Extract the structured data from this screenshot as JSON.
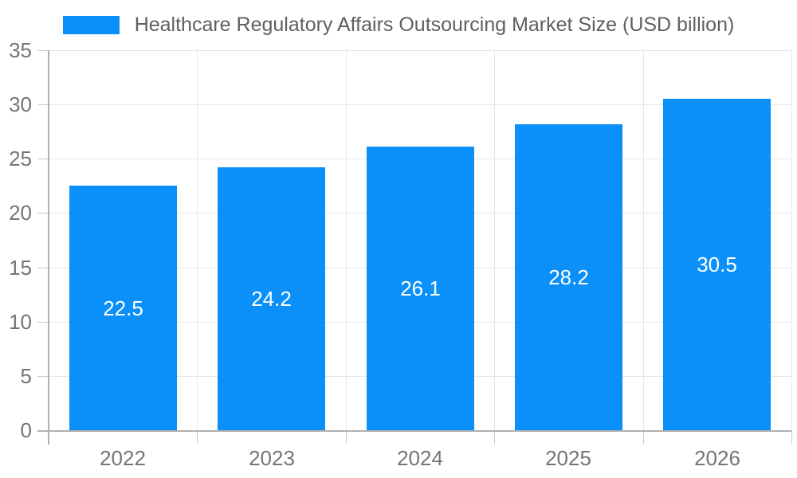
{
  "chart": {
    "legend_label": "Healthcare Regulatory Affairs Outsourcing Market Size (USD billion)"
  },
  "chart_data": {
    "type": "bar",
    "title": "Healthcare Regulatory Affairs Outsourcing Market Size (USD billion)",
    "categories": [
      "2022",
      "2023",
      "2024",
      "2025",
      "2026"
    ],
    "values": [
      22.5,
      24.2,
      26.1,
      28.2,
      30.5
    ],
    "value_labels": [
      "22.5",
      "24.2",
      "26.1",
      "28.2",
      "30.5"
    ],
    "ytick_labels": [
      "0",
      "5",
      "10",
      "15",
      "20",
      "25",
      "30",
      "35"
    ],
    "xlabel": "",
    "ylabel": "",
    "ylim": [
      0,
      35
    ],
    "ytick_step": 5,
    "grid": true,
    "legend_position": "top",
    "colors": {
      "bar": "#0a90f8",
      "grid": "#e6e6e6",
      "axis": "#b0b0b0",
      "tick": "#c9c9c9",
      "axis_label": "#757575",
      "title": "#5f5f5f",
      "value_label": "#ffffff",
      "background": "#ffffff"
    }
  }
}
